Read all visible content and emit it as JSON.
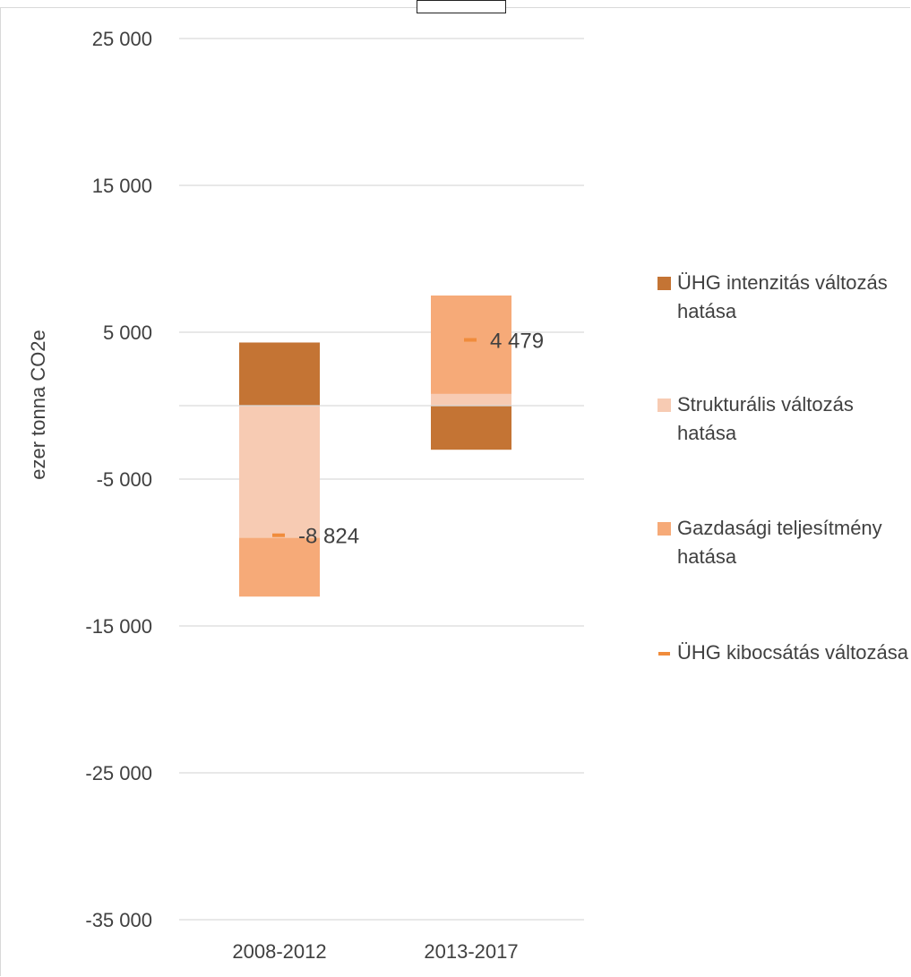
{
  "chart_data": {
    "type": "bar",
    "stacked": true,
    "title": "",
    "xlabel": "",
    "ylabel": "ezer tonna CO2e",
    "categories": [
      "2008-2012",
      "2013-2017"
    ],
    "ylim": [
      -35000,
      25000
    ],
    "yticks": [
      25000,
      15000,
      5000,
      -5000,
      -15000,
      -25000,
      -35000
    ],
    "ytick_labels": [
      "25 000",
      "15 000",
      "5 000",
      "-5 000",
      "-15 000",
      "-25 000",
      "-35 000"
    ],
    "grid": true,
    "legend_position": "right",
    "series": [
      {
        "name": "ÜHG intenzitás változás hatása",
        "color": "#c47434",
        "values": [
          4300,
          -3000
        ]
      },
      {
        "name": "Strukturális változás hatása",
        "color": "#f7cbb3",
        "values": [
          -9000,
          800
        ]
      },
      {
        "name": "Gazdasági teljesítmény hatása",
        "color": "#f6aa78",
        "values": [
          -4000,
          6700
        ]
      }
    ],
    "line_series": {
      "name": "ÜHG kibocsátás változása",
      "color": "#f08c3c",
      "values": [
        -8824,
        4479
      ],
      "labels": [
        "-8 824",
        "4 479"
      ]
    }
  }
}
